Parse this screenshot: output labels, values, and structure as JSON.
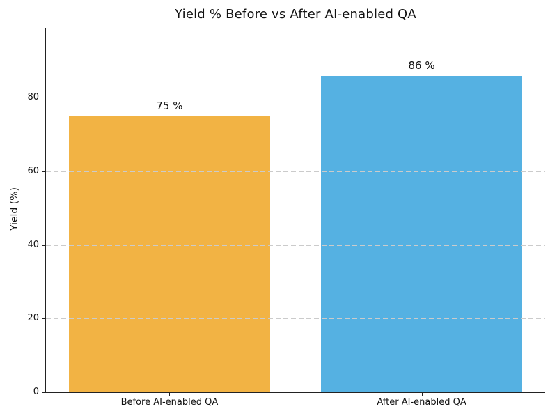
{
  "chart_data": {
    "type": "bar",
    "title": "Yield % Before vs After AI-enabled QA",
    "xlabel": "",
    "ylabel": "Yield (%)",
    "categories": [
      "Before AI-enabled QA",
      "After AI-enabled QA"
    ],
    "values": [
      75,
      86
    ],
    "bar_labels": [
      "75 %",
      "86 %"
    ],
    "bar_colors": [
      "#F2B344",
      "#55B1E2"
    ],
    "ylim": [
      0,
      99
    ],
    "yticks": [
      0,
      20,
      40,
      60,
      80
    ],
    "ytick_labels": [
      "0",
      "20",
      "40",
      "60",
      "80"
    ],
    "bar_width_fraction": 0.8,
    "grid": {
      "axis": "y",
      "style": "dashed",
      "color": "#CBCBCB",
      "drawn_over_bars": true
    },
    "legend": null,
    "colors": {
      "background": "#FFFFFF",
      "spine": "#222222",
      "text": "#111111",
      "grid": "#CBCBCB"
    }
  }
}
